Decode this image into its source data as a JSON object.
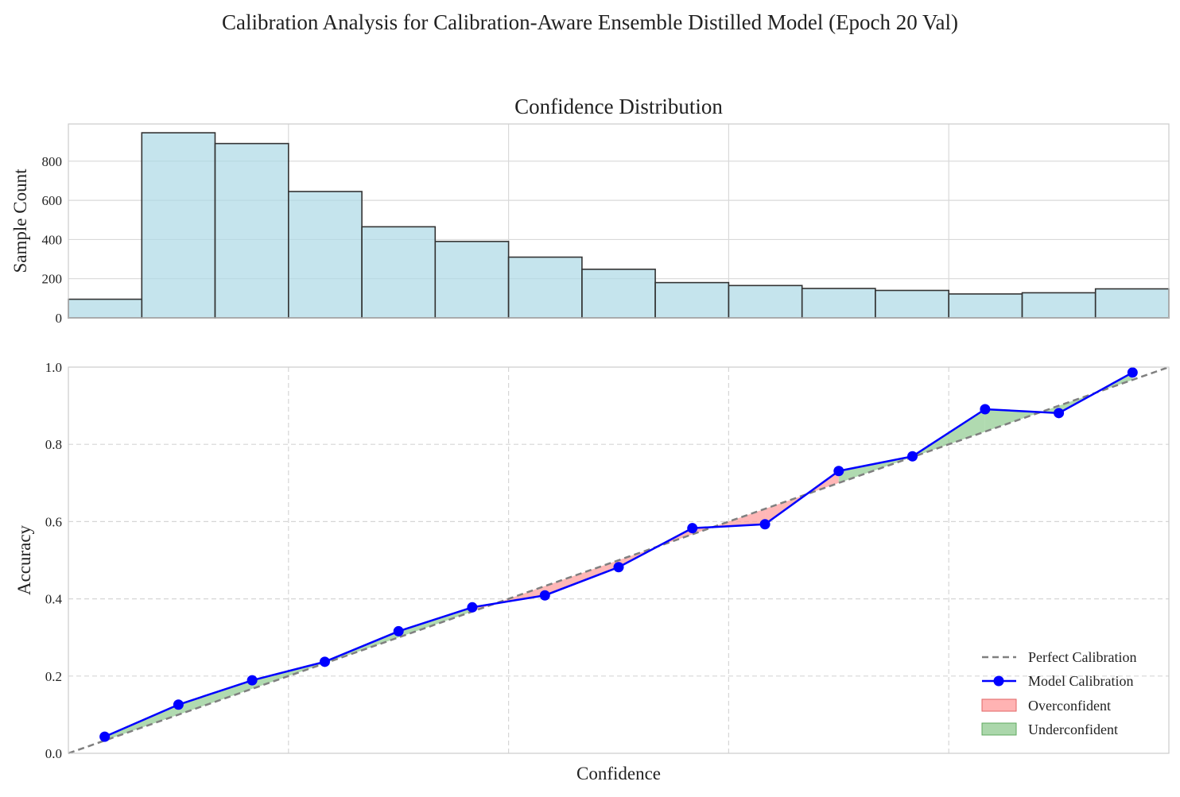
{
  "figure": {
    "title": "Calibration Analysis for Calibration-Aware Ensemble Distilled Model (Epoch 20 Val)"
  },
  "chart_data": [
    {
      "type": "bar",
      "title": "Confidence Distribution",
      "xlabel": "",
      "ylabel": "Sample Count",
      "xlim": [
        0,
        1
      ],
      "ylim": [
        0,
        990
      ],
      "yticks": [
        "0",
        "200",
        "400",
        "600",
        "800"
      ],
      "grid": true,
      "bin_edges": [
        0.0,
        0.0667,
        0.1333,
        0.2,
        0.2667,
        0.3333,
        0.4,
        0.4667,
        0.5333,
        0.6,
        0.6667,
        0.7333,
        0.8,
        0.8667,
        0.9333,
        1.0
      ],
      "values": [
        95,
        945,
        890,
        645,
        465,
        390,
        310,
        248,
        180,
        165,
        150,
        140,
        122,
        128,
        148
      ],
      "colors": {
        "fill": "#add8e6",
        "edge": "#333333"
      }
    },
    {
      "type": "line",
      "title": "",
      "xlabel": "Confidence",
      "ylabel": "Accuracy",
      "xlim": [
        0,
        1
      ],
      "ylim": [
        0,
        1
      ],
      "yticks": [
        "0.0",
        "0.2",
        "0.4",
        "0.6",
        "0.8",
        "1.0"
      ],
      "grid": true,
      "legend_position": "lower-right",
      "series": [
        {
          "name": "Perfect Calibration",
          "style": "dashed",
          "color": "#808080",
          "x": [
            0,
            1
          ],
          "y": [
            0,
            1
          ]
        },
        {
          "name": "Model Calibration",
          "style": "solid-markers",
          "color": "#0000ff",
          "x": [
            0.033,
            0.1,
            0.167,
            0.233,
            0.3,
            0.367,
            0.433,
            0.5,
            0.567,
            0.633,
            0.7,
            0.767,
            0.833,
            0.9,
            0.967
          ],
          "y": [
            0.043,
            0.126,
            0.189,
            0.237,
            0.316,
            0.378,
            0.409,
            0.482,
            0.583,
            0.593,
            0.731,
            0.769,
            0.891,
            0.881,
            0.986
          ]
        }
      ],
      "fill_legend": [
        {
          "name": "Overconfident",
          "color": "#ff9999"
        },
        {
          "name": "Underconfident",
          "color": "#8fca8f"
        }
      ]
    }
  ]
}
